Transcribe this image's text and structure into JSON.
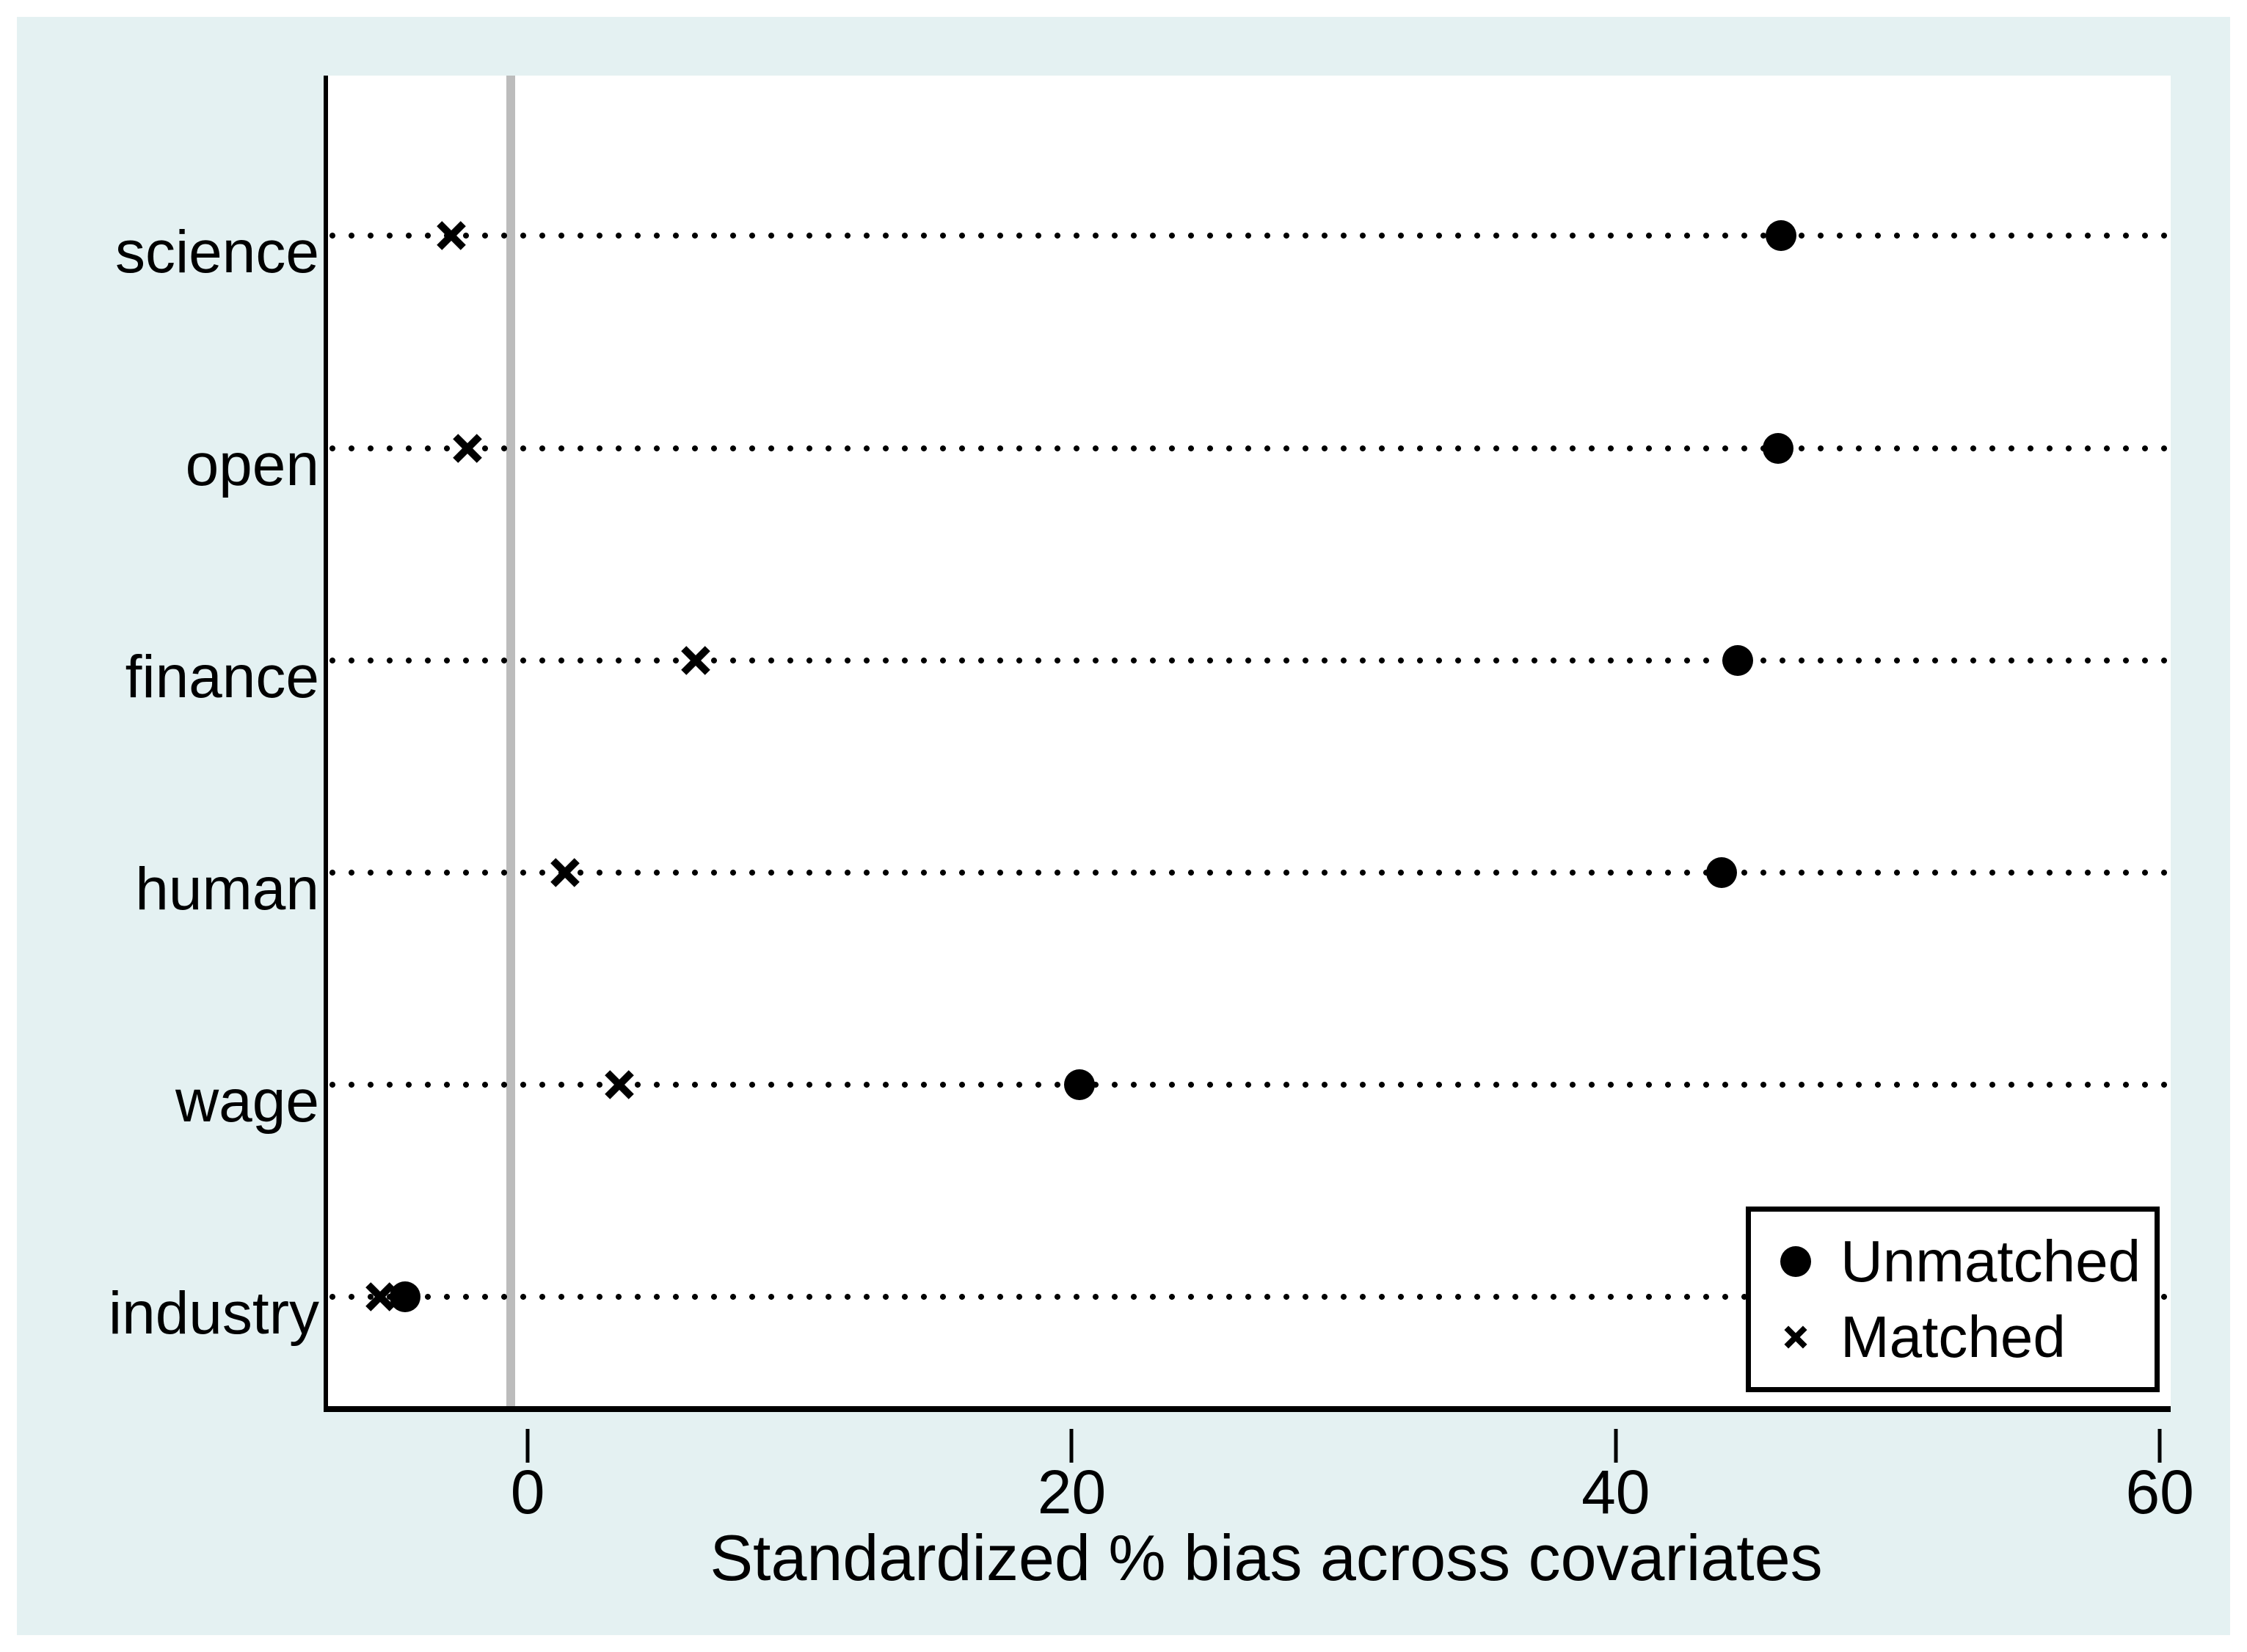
{
  "figure": {
    "xlabel": "Standardized % bias across covariates",
    "legend": {
      "unmatched_label": "Unmatched",
      "matched_label": "Matched"
    }
  },
  "colors": {
    "outer_background": "#ffffff",
    "panel_background": "#e4f1f2",
    "plot_background": "#ffffff",
    "marker_color": "#000000",
    "zero_line_color": "#bcbcbc",
    "axis_color": "#000000"
  },
  "chart_data": {
    "type": "scatter",
    "subtype": "horizontal-dot-plot",
    "title": "",
    "xlabel": "Standardized % bias across covariates",
    "ylabel": "",
    "categories": [
      "science",
      "open",
      "finance",
      "human",
      "wage",
      "industry"
    ],
    "series": [
      {
        "name": "Unmatched",
        "marker": "filled-circle",
        "values": [
          46.7,
          46.6,
          45.1,
          44.5,
          20.9,
          -3.9
        ]
      },
      {
        "name": "Matched",
        "marker": "x",
        "values": [
          -2.2,
          -1.6,
          6.8,
          2.0,
          4.0,
          -4.8
        ]
      }
    ],
    "x_ticks": [
      0,
      20,
      40,
      60
    ],
    "x_tick_labels": [
      "0",
      "20",
      "40",
      "60"
    ],
    "x_range": [
      -6.72,
      61.02
    ],
    "zero_reference_line": 0,
    "grid": "dotted horizontal leader line per category",
    "legend_position": "bottom-right-inside"
  }
}
